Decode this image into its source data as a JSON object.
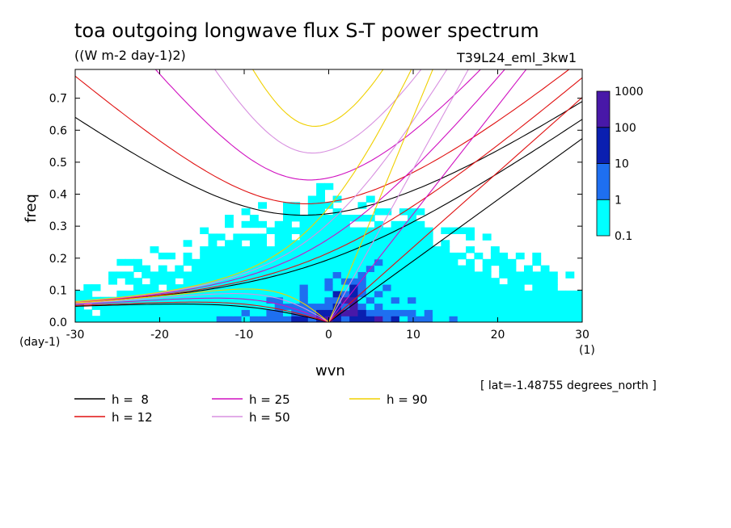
{
  "header": {
    "title": "toa outgoing longwave flux S-T power spectrum",
    "units": "((W m-2 day-1)2)",
    "experiment": "T39L24_eml_3kw1"
  },
  "footer": {
    "lat_note": "[ lat=-1.48755 degrees_north ]"
  },
  "chart_data": {
    "type": "heatmap",
    "xlabel": "wvn",
    "ylabel": "freq",
    "xunit": "(1)",
    "yunit": "(day-1)",
    "xlim": [
      -30,
      30
    ],
    "ylim": [
      0,
      0.79
    ],
    "xticks": [
      -30,
      -20,
      -10,
      0,
      10,
      20,
      30
    ],
    "xtick_labels": [
      "-30",
      "-20",
      "-10",
      "0",
      "10",
      "20",
      "30"
    ],
    "yticks": [
      0.0,
      0.1,
      0.2,
      0.3,
      0.4,
      0.5,
      0.6,
      0.7
    ],
    "ytick_labels": [
      "0.0",
      "0.1",
      "0.2",
      "0.3",
      "0.4",
      "0.5",
      "0.6",
      "0.7"
    ],
    "colorbar": {
      "levels": [
        "0.1",
        "1",
        "10",
        "100",
        "1000"
      ],
      "colors": [
        "#00ffff",
        "#1e6ff0",
        "#0a1fb0",
        "#4818a8"
      ]
    },
    "dispersion_curves": [
      {
        "h": 8,
        "label": "h =  8",
        "color": "#000000"
      },
      {
        "h": 12,
        "label": "h = 12",
        "color": "#e01010"
      },
      {
        "h": 25,
        "label": "h = 25",
        "color": "#d010c0"
      },
      {
        "h": 50,
        "label": "h = 50",
        "color": "#d890e0"
      },
      {
        "h": 90,
        "label": "h = 90",
        "color": "#f0d000"
      }
    ]
  }
}
